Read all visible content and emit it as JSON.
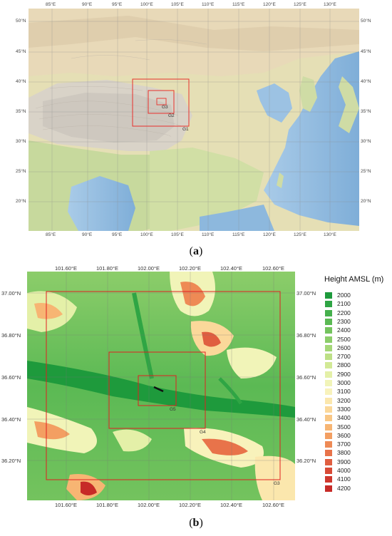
{
  "map_a": {
    "caption_open": "(",
    "caption_letter": "a",
    "caption_close": ")",
    "top_ticks": [
      "85°E",
      "90°E",
      "95°E",
      "100°E",
      "105°E",
      "110°E",
      "115°E",
      "120°E",
      "125°E",
      "130°E"
    ],
    "bottom_ticks": [
      "85°E",
      "90°E",
      "95°E",
      "100°E",
      "105°E",
      "110°E",
      "115°E",
      "120°E",
      "125°E",
      "130°E"
    ],
    "left_ticks": [
      "50°N",
      "45°N",
      "40°N",
      "35°N",
      "30°N",
      "25°N",
      "20°N"
    ],
    "right_ticks": [
      "50°N",
      "45°N",
      "40°N",
      "35°N",
      "30°N",
      "25°N",
      "20°N"
    ],
    "domains": [
      "G1",
      "G2",
      "G3"
    ]
  },
  "map_b": {
    "caption_open": "(",
    "caption_letter": "b",
    "caption_close": ")",
    "top_ticks": [
      "101.60°E",
      "101.80°E",
      "102.00°E",
      "102.20°E",
      "102.40°E",
      "102.60°E"
    ],
    "bottom_ticks": [
      "101.60°E",
      "101.80°E",
      "102.00°E",
      "102.20°E",
      "102.40°E",
      "102.60°E"
    ],
    "left_ticks": [
      "37.00°N",
      "36.80°N",
      "36.60°N",
      "36.40°N",
      "36.20°N"
    ],
    "right_ticks": [
      "37.00°N",
      "36.80°N",
      "36.60°N",
      "36.40°N",
      "36.20°N"
    ],
    "domains": [
      "G3",
      "G4",
      "G5"
    ]
  },
  "legend": {
    "title": "Height AMSL (m)",
    "items": [
      {
        "label": "2000",
        "color": "#1e9a3c"
      },
      {
        "label": "2100",
        "color": "#2fa544"
      },
      {
        "label": "2200",
        "color": "#45b04c"
      },
      {
        "label": "2300",
        "color": "#5bb954"
      },
      {
        "label": "2400",
        "color": "#74c35e"
      },
      {
        "label": "2500",
        "color": "#8ccd6a"
      },
      {
        "label": "2600",
        "color": "#a5d778"
      },
      {
        "label": "2700",
        "color": "#bde086"
      },
      {
        "label": "2800",
        "color": "#d2e996"
      },
      {
        "label": "2900",
        "color": "#e4f0a8"
      },
      {
        "label": "3000",
        "color": "#f1f4b8"
      },
      {
        "label": "3100",
        "color": "#f8f2bb"
      },
      {
        "label": "3200",
        "color": "#fbe7ad"
      },
      {
        "label": "3300",
        "color": "#fbd89a"
      },
      {
        "label": "3400",
        "color": "#f9c785"
      },
      {
        "label": "3500",
        "color": "#f7b573"
      },
      {
        "label": "3600",
        "color": "#f39f62"
      },
      {
        "label": "3700",
        "color": "#ee8a55"
      },
      {
        "label": "3800",
        "color": "#e8734a"
      },
      {
        "label": "3900",
        "color": "#e05e40"
      },
      {
        "label": "4000",
        "color": "#d84a36"
      },
      {
        "label": "4100",
        "color": "#cf382e"
      },
      {
        "label": "4200",
        "color": "#c72a27"
      }
    ]
  }
}
